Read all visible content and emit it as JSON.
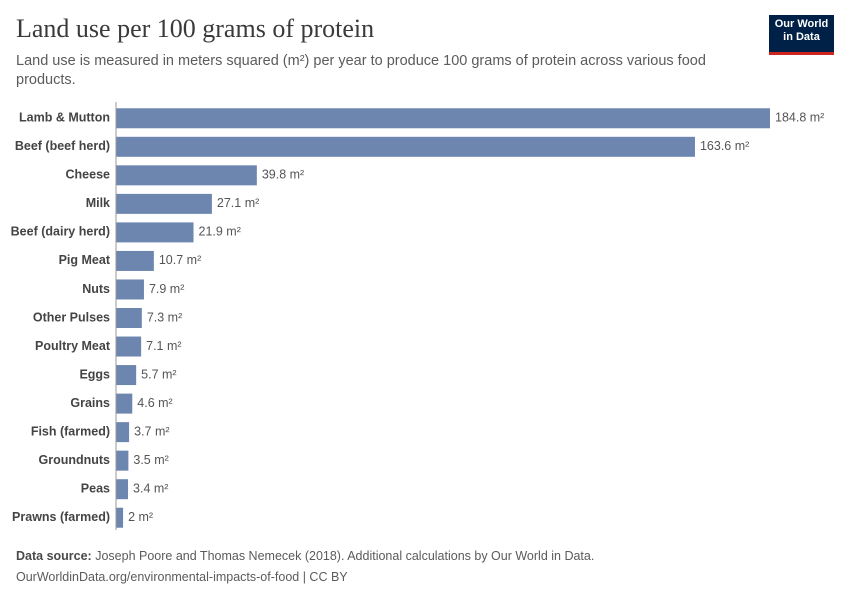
{
  "title": "Land use per 100 grams of protein",
  "subtitle": "Land use is measured in meters squared (m²) per year to produce 100 grams of protein across various food products.",
  "logo": [
    "Our World",
    "in Data"
  ],
  "source_label": "Data source:",
  "source": "Joseph Poore and Thomas Nemecek (2018). Additional calculations by Our World in Data.",
  "url_line": "OurWorldinData.org/environmental-impacts-of-food | CC BY",
  "chart_data": {
    "type": "bar",
    "orientation": "horizontal",
    "color": "#6d86b0",
    "categories": [
      "Lamb & Mutton",
      "Beef (beef herd)",
      "Cheese",
      "Milk",
      "Beef (dairy herd)",
      "Pig Meat",
      "Nuts",
      "Other Pulses",
      "Poultry Meat",
      "Eggs",
      "Grains",
      "Fish (farmed)",
      "Groundnuts",
      "Peas",
      "Prawns (farmed)"
    ],
    "values": [
      184.8,
      163.6,
      39.8,
      27.1,
      21.9,
      10.7,
      7.9,
      7.3,
      7.1,
      5.7,
      4.6,
      3.7,
      3.5,
      3.4,
      2
    ],
    "value_labels": [
      "184.8 m²",
      "163.6 m²",
      "39.8 m²",
      "27.1 m²",
      "21.9 m²",
      "10.7 m²",
      "7.9 m²",
      "7.3 m²",
      "7.1 m²",
      "5.7 m²",
      "4.6 m²",
      "3.7 m²",
      "3.5 m²",
      "3.4 m²",
      "2 m²"
    ]
  }
}
